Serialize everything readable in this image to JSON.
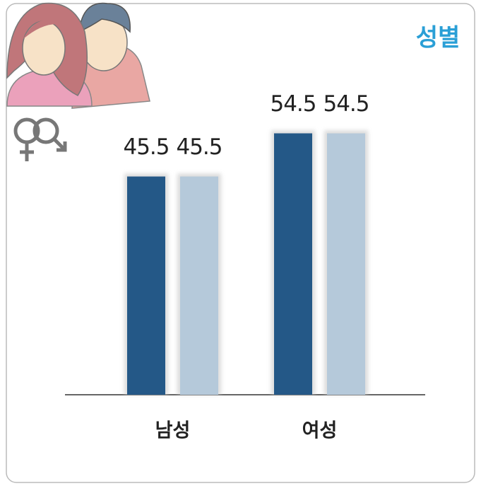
{
  "chart_data": {
    "type": "bar",
    "title": "성별",
    "categories": [
      "남성",
      "여성"
    ],
    "series": [
      {
        "color": "#245887",
        "values": [
          45.5,
          54.5
        ]
      },
      {
        "color": "#b5c9da",
        "values": [
          45.5,
          54.5
        ]
      }
    ]
  }
}
